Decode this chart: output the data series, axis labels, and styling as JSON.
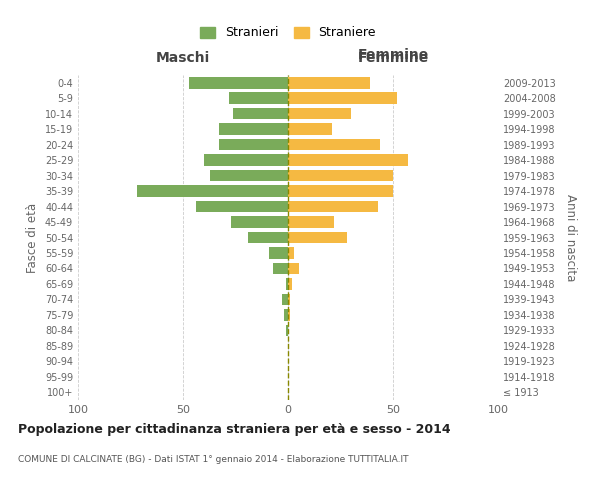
{
  "age_groups": [
    "100+",
    "95-99",
    "90-94",
    "85-89",
    "80-84",
    "75-79",
    "70-74",
    "65-69",
    "60-64",
    "55-59",
    "50-54",
    "45-49",
    "40-44",
    "35-39",
    "30-34",
    "25-29",
    "20-24",
    "15-19",
    "10-14",
    "5-9",
    "0-4"
  ],
  "birth_years": [
    "≤ 1913",
    "1914-1918",
    "1919-1923",
    "1924-1928",
    "1929-1933",
    "1934-1938",
    "1939-1943",
    "1944-1948",
    "1949-1953",
    "1954-1958",
    "1959-1963",
    "1964-1968",
    "1969-1973",
    "1974-1978",
    "1979-1983",
    "1984-1988",
    "1989-1993",
    "1994-1998",
    "1999-2003",
    "2004-2008",
    "2009-2013"
  ],
  "maschi": [
    0,
    0,
    0,
    0,
    1,
    2,
    3,
    1,
    7,
    9,
    19,
    27,
    44,
    72,
    37,
    40,
    33,
    33,
    26,
    28,
    47
  ],
  "femmine": [
    0,
    0,
    0,
    0,
    0,
    1,
    1,
    2,
    5,
    3,
    28,
    22,
    43,
    50,
    50,
    57,
    44,
    21,
    30,
    52,
    39
  ],
  "color_maschi": "#7aab5a",
  "color_femmine": "#f5b942",
  "color_center_line": "#888800",
  "background_color": "#ffffff",
  "grid_color": "#cccccc",
  "title": "Popolazione per cittadinanza straniera per età e sesso - 2014",
  "subtitle": "COMUNE DI CALCINATE (BG) - Dati ISTAT 1° gennaio 2014 - Elaborazione TUTTITALIA.IT",
  "ylabel_left": "Fasce di età",
  "ylabel_right": "Anni di nascita",
  "xlabel_left": "Maschi",
  "xlabel_right": "Femmine",
  "legend_maschi": "Stranieri",
  "legend_femmine": "Straniere",
  "xlim": 100,
  "bar_height": 0.75
}
